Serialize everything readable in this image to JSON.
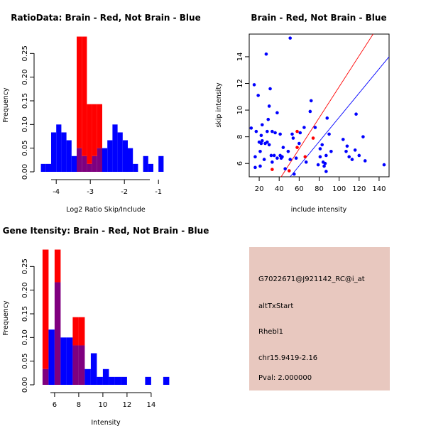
{
  "colors": {
    "red": "#ff0000",
    "blue": "#0000ff",
    "purple": "#7f007f",
    "panel_bg": "#e8c8bf",
    "pval": "#b00000"
  },
  "chart_data": [
    {
      "type": "bar",
      "subtype": "overlaid-histogram",
      "title": "RatioData: Brain - Red, Not Brain - Blue",
      "xlabel": "Log2 Ratio Skip/Include",
      "ylabel": "Frequency",
      "xlim": [
        -4.65,
        -0.4
      ],
      "ylim": [
        0,
        0.285
      ],
      "xticks": [
        -4,
        -3,
        -2,
        -1
      ],
      "yticks": [
        0.0,
        0.05,
        0.1,
        0.15,
        0.2,
        0.25
      ],
      "ytick_labels": [
        "0.00",
        "0.05",
        "0.10",
        "0.15",
        "0.20",
        "0.25"
      ],
      "xtick_labels": [
        "-4",
        "-3",
        "-2",
        "-1"
      ],
      "bin_width": 0.15,
      "bin_starts": [
        -4.45,
        -4.3,
        -4.15,
        -4.0,
        -3.85,
        -3.7,
        -3.55,
        -3.4,
        -3.25,
        -3.1,
        -2.95,
        -2.8,
        -2.65,
        -2.5,
        -2.35,
        -2.2,
        -2.05,
        -1.9,
        -1.75,
        -1.6,
        -1.45,
        -1.3,
        -1.15,
        -1.0,
        -0.85,
        -0.7,
        -0.55
      ],
      "series": [
        {
          "name": "Brain",
          "color": "red",
          "values": [
            0,
            0,
            0,
            0,
            0,
            0,
            0,
            0.2857,
            0.2857,
            0.1429,
            0.1429,
            0.1429,
            0,
            0,
            0,
            0,
            0,
            0,
            0,
            0,
            0,
            0,
            0,
            0,
            0,
            0,
            0
          ]
        },
        {
          "name": "Not Brain",
          "color": "blue",
          "values": [
            0.0167,
            0.0167,
            0.0833,
            0.1,
            0.0833,
            0.0667,
            0.0333,
            0.05,
            0.0333,
            0.0167,
            0.0333,
            0.05,
            0.05,
            0.0667,
            0.1,
            0.0833,
            0.0667,
            0.05,
            0.0167,
            0,
            0.0333,
            0.0167,
            0,
            0.0333,
            0,
            0,
            0
          ]
        }
      ]
    },
    {
      "type": "scatter",
      "title": "Brain - Red, Not Brain - Blue",
      "xlabel": "include intensity",
      "ylabel": "skip intensity",
      "xlim": [
        10,
        150
      ],
      "ylim": [
        5,
        15.7
      ],
      "xticks": [
        20,
        40,
        60,
        80,
        100,
        120,
        140
      ],
      "yticks": [
        6,
        8,
        10,
        12,
        14
      ],
      "xtick_labels": [
        "20",
        "40",
        "60",
        "80",
        "100",
        "120",
        "140"
      ],
      "ytick_labels": [
        "6",
        "8",
        "10",
        "12",
        "14"
      ],
      "fit_lines": [
        {
          "name": "Brain fit",
          "color": "red",
          "points": [
            [
              42,
              5.0
            ],
            [
              134,
              15.7
            ]
          ]
        },
        {
          "name": "Not Brain fit",
          "color": "blue",
          "points": [
            [
              51,
              5.0
            ],
            [
              150,
              14.0
            ]
          ]
        }
      ],
      "series": [
        {
          "name": "Brain",
          "color": "red",
          "points": [
            [
              33,
              5.55
            ],
            [
              50,
              5.45
            ],
            [
              58,
              7.2
            ],
            [
              58,
              8.4
            ],
            [
              66,
              6.5
            ],
            [
              74,
              7.9
            ]
          ]
        },
        {
          "name": "Not Brain",
          "color": "blue",
          "points": [
            [
              12,
              8.65
            ],
            [
              15,
              11.9
            ],
            [
              16,
              5.7
            ],
            [
              16,
              6.5
            ],
            [
              17,
              8.4
            ],
            [
              19,
              11.1
            ],
            [
              20,
              7.6
            ],
            [
              21,
              6.9
            ],
            [
              21,
              5.8
            ],
            [
              22,
              7.5
            ],
            [
              22,
              8.1
            ],
            [
              23,
              7.7
            ],
            [
              23,
              8.9
            ],
            [
              25,
              6.3
            ],
            [
              26,
              7.5
            ],
            [
              27,
              14.2
            ],
            [
              28,
              7.6
            ],
            [
              28,
              8.4
            ],
            [
              29,
              9.3
            ],
            [
              30,
              7.4
            ],
            [
              30,
              10.3
            ],
            [
              31,
              11.6
            ],
            [
              32,
              6.6
            ],
            [
              33,
              8.4
            ],
            [
              33,
              6.1
            ],
            [
              35,
              6.6
            ],
            [
              36,
              8.3
            ],
            [
              38,
              9.8
            ],
            [
              38,
              6.4
            ],
            [
              41,
              6.6
            ],
            [
              41,
              8.2
            ],
            [
              42,
              6.4
            ],
            [
              43,
              6.5
            ],
            [
              44,
              7.2
            ],
            [
              46,
              5.6
            ],
            [
              49,
              6.9
            ],
            [
              51,
              6.3
            ],
            [
              51,
              15.4
            ],
            [
              53,
              8.2
            ],
            [
              54,
              7.9
            ],
            [
              55,
              5.2
            ],
            [
              57,
              6.4
            ],
            [
              60,
              7.5
            ],
            [
              61,
              8.3
            ],
            [
              65,
              8.7
            ],
            [
              67,
              6.1
            ],
            [
              71,
              9.9
            ],
            [
              72,
              10.7
            ],
            [
              76,
              8.7
            ],
            [
              79,
              5.9
            ],
            [
              81,
              7.1
            ],
            [
              81,
              6.5
            ],
            [
              83,
              7.4
            ],
            [
              84,
              6.1
            ],
            [
              85,
              5.8
            ],
            [
              86,
              6.0
            ],
            [
              87,
              6.6
            ],
            [
              87,
              5.4
            ],
            [
              88,
              9.4
            ],
            [
              90,
              8.2
            ],
            [
              92,
              6.9
            ],
            [
              104,
              7.8
            ],
            [
              107,
              6.9
            ],
            [
              108,
              7.3
            ],
            [
              110,
              6.5
            ],
            [
              113,
              6.3
            ],
            [
              116,
              7.0
            ],
            [
              117,
              9.7
            ],
            [
              120,
              6.6
            ],
            [
              124,
              8.0
            ],
            [
              126,
              6.2
            ],
            [
              145,
              5.9
            ]
          ]
        }
      ]
    },
    {
      "type": "bar",
      "subtype": "overlaid-histogram",
      "title": "Gene Itensity: Brain - Red, Not Brain - Blue",
      "xlabel": "Intensity",
      "ylabel": "Frequency",
      "xlim": [
        4.3,
        16.3
      ],
      "ylim": [
        0,
        0.285
      ],
      "xticks": [
        6,
        8,
        10,
        12,
        14
      ],
      "yticks": [
        0.0,
        0.05,
        0.1,
        0.15,
        0.2,
        0.25
      ],
      "ytick_labels": [
        "0.00",
        "0.05",
        "0.10",
        "0.15",
        "0.20",
        "0.25"
      ],
      "xtick_labels": [
        "6",
        "8",
        "10",
        "12",
        "14"
      ],
      "bin_width": 0.5,
      "bin_starts": [
        5.0,
        5.5,
        6.0,
        6.5,
        7.0,
        7.5,
        8.0,
        8.5,
        9.0,
        9.5,
        10.0,
        10.5,
        11.0,
        11.5,
        12.0,
        12.5,
        13.0,
        13.5,
        14.0,
        14.5,
        15.0,
        15.5
      ],
      "series": [
        {
          "name": "Brain",
          "color": "red",
          "values": [
            0.2857,
            0,
            0.2857,
            0,
            0,
            0.1429,
            0.1429,
            0,
            0,
            0,
            0,
            0,
            0,
            0,
            0,
            0,
            0,
            0,
            0,
            0,
            0,
            0
          ]
        },
        {
          "name": "Not Brain",
          "color": "blue",
          "values": [
            0.0333,
            0.1167,
            0.2167,
            0.1,
            0.1,
            0.0833,
            0.0833,
            0.0333,
            0.0667,
            0.0167,
            0.0333,
            0.0167,
            0.0167,
            0.0167,
            0,
            0,
            0,
            0.0167,
            0,
            0,
            0.0167,
            0
          ]
        }
      ]
    }
  ],
  "info_panel": {
    "probe_id": "G7022671@J921142_RC@i_at",
    "event_type": "altTxStart",
    "gene": "Rhebl1",
    "location": "chr15.9419-2.16",
    "pval": "Pval: 2.000000"
  }
}
